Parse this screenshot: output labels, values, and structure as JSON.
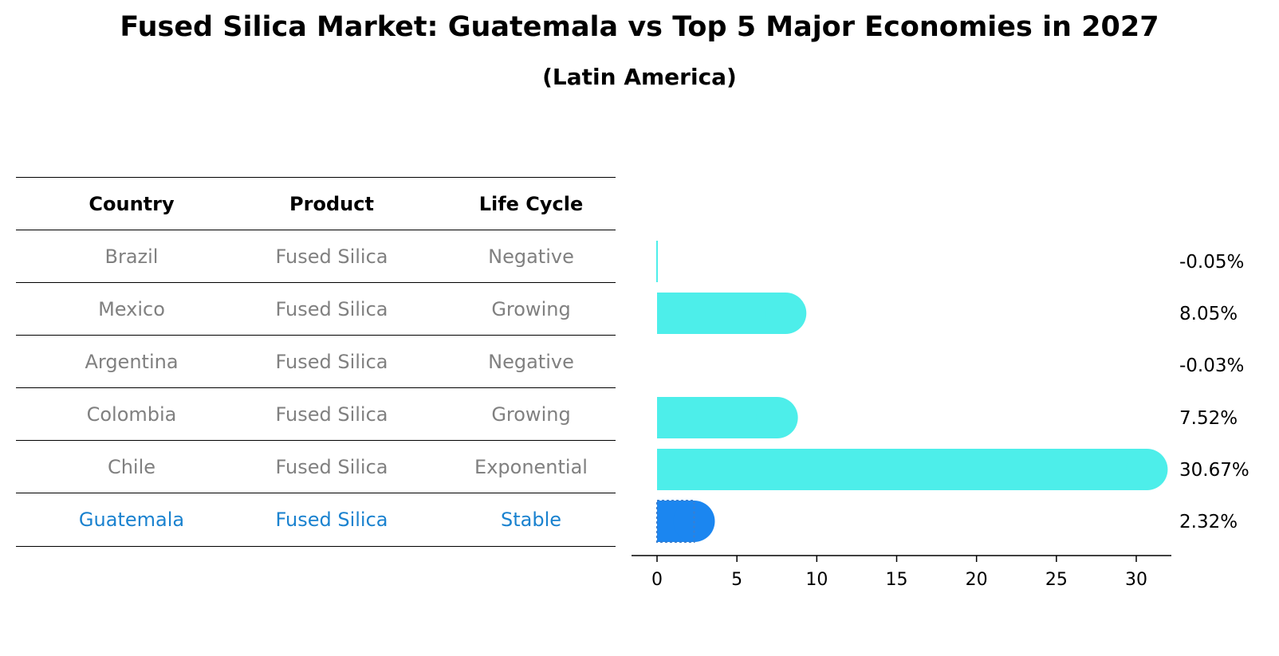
{
  "title": "Fused Silica Market: Guatemala vs Top 5 Major Economies in 2027",
  "subtitle": "(Latin America)",
  "table": {
    "headers": [
      "Country",
      "Product",
      "Life Cycle"
    ],
    "rows": [
      [
        "Brazil",
        "Fused Silica",
        "Negative"
      ],
      [
        "Mexico",
        "Fused Silica",
        "Growing"
      ],
      [
        "Argentina",
        "Fused Silica",
        "Negative"
      ],
      [
        "Colombia",
        "Fused Silica",
        "Growing"
      ],
      [
        "Chile",
        "Fused Silica",
        "Exponential"
      ],
      [
        "Guatemala",
        "Fused Silica",
        "Stable"
      ]
    ],
    "highlight_row": 5
  },
  "colors": {
    "bar": "#4deeea",
    "highlight_bar": "#1b86f0",
    "highlight_text": "#1a82cf",
    "muted_text": "#808080"
  },
  "chart_data": {
    "type": "bar",
    "orientation": "horizontal",
    "categories": [
      "Brazil",
      "Mexico",
      "Argentina",
      "Colombia",
      "Chile",
      "Guatemala"
    ],
    "values": [
      -0.05,
      8.05,
      -0.03,
      7.52,
      30.67,
      2.32
    ],
    "value_labels": [
      "-0.05%",
      "8.05%",
      "-0.03%",
      "7.52%",
      "30.67%",
      "2.32%"
    ],
    "highlight": "Guatemala",
    "xlim": [
      -1.6,
      32.3
    ],
    "xticks": [
      0,
      5,
      10,
      15,
      20,
      25,
      30
    ],
    "xtick_labels": [
      "0",
      "5",
      "10",
      "15",
      "20",
      "25",
      "30"
    ],
    "grid": false
  }
}
